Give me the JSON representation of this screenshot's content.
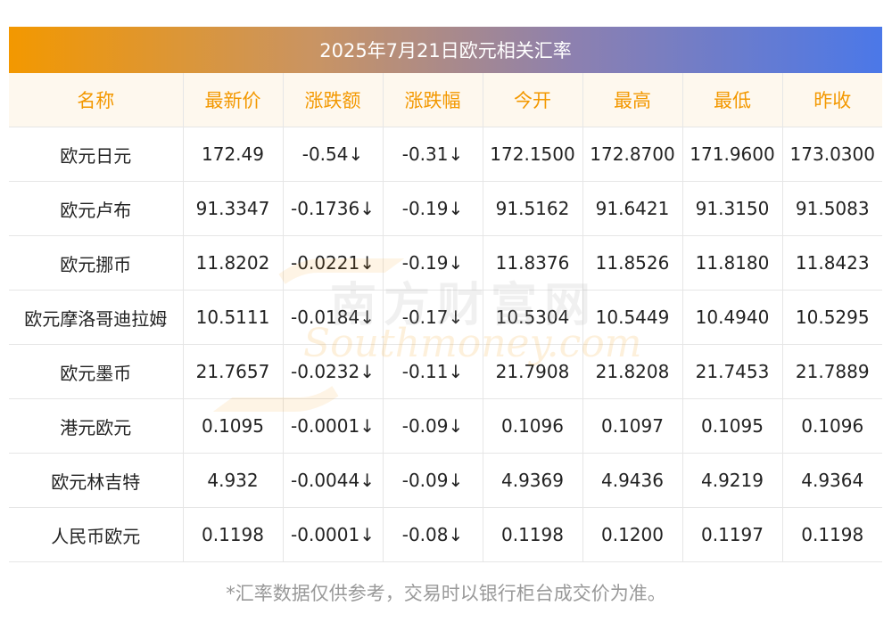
{
  "title": "2025年7月21日欧元相关汇率",
  "headers": [
    "名称",
    "最新价",
    "涨跌额",
    "涨跌幅",
    "今开",
    "最高",
    "最低",
    "昨收"
  ],
  "rows": [
    {
      "name": "欧元日元",
      "latest": "172.49",
      "change": "-0.54↓",
      "pct": "-0.31↓",
      "open": "172.1500",
      "high": "172.8700",
      "low": "171.9600",
      "prev": "173.0300"
    },
    {
      "name": "欧元卢布",
      "latest": "91.3347",
      "change": "-0.1736↓",
      "pct": "-0.19↓",
      "open": "91.5162",
      "high": "91.6421",
      "low": "91.3150",
      "prev": "91.5083"
    },
    {
      "name": "欧元挪币",
      "latest": "11.8202",
      "change": "-0.0221↓",
      "pct": "-0.19↓",
      "open": "11.8376",
      "high": "11.8526",
      "low": "11.8180",
      "prev": "11.8423"
    },
    {
      "name": "欧元摩洛哥迪拉姆",
      "latest": "10.5111",
      "change": "-0.0184↓",
      "pct": "-0.17↓",
      "open": "10.5304",
      "high": "10.5449",
      "low": "10.4940",
      "prev": "10.5295"
    },
    {
      "name": "欧元墨币",
      "latest": "21.7657",
      "change": "-0.0232↓",
      "pct": "-0.11↓",
      "open": "21.7908",
      "high": "21.8208",
      "low": "21.7453",
      "prev": "21.7889"
    },
    {
      "name": "港元欧元",
      "latest": "0.1095",
      "change": "-0.0001↓",
      "pct": "-0.09↓",
      "open": "0.1096",
      "high": "0.1097",
      "low": "0.1095",
      "prev": "0.1096"
    },
    {
      "name": "欧元林吉特",
      "latest": "4.932",
      "change": "-0.0044↓",
      "pct": "-0.09↓",
      "open": "4.9369",
      "high": "4.9436",
      "low": "4.9219",
      "prev": "4.9364"
    },
    {
      "name": "人民币欧元",
      "latest": "0.1198",
      "change": "-0.0001↓",
      "pct": "-0.08↓",
      "open": "0.1198",
      "high": "0.1200",
      "low": "0.1197",
      "prev": "0.1198"
    }
  ],
  "watermark": {
    "cn": "南方财富网",
    "en": "Southmoney.com"
  },
  "footnote": "*汇率数据仅供参考，交易时以银行柜台成交价为准。",
  "colors": {
    "header_text": "#f39800",
    "down": "#1e8b1e",
    "title_gradient_start": "#f39800",
    "title_gradient_end": "#4b78e8"
  }
}
